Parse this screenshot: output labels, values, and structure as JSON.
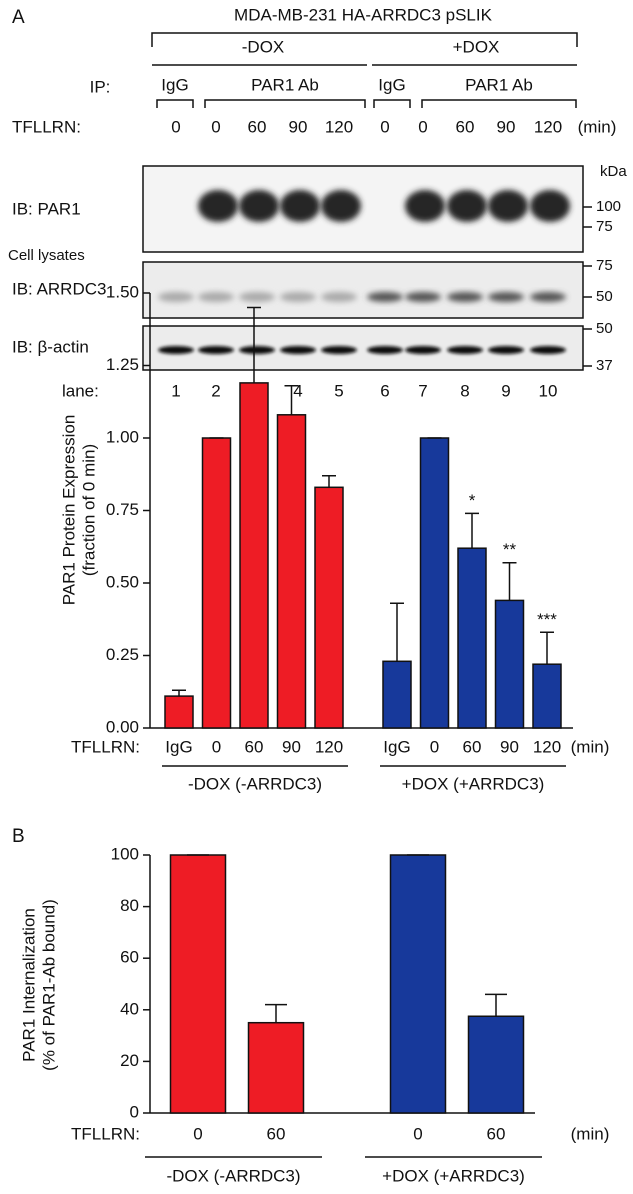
{
  "blot": {
    "panel_label": "A",
    "title": "MDA-MB-231 HA-ARRDC3 pSLIK",
    "groups": [
      "-DOX",
      "+DOX"
    ],
    "ip_label": "IP:",
    "ip_groups": [
      "IgG",
      "PAR1 Ab",
      "IgG",
      "PAR1 Ab"
    ],
    "treatment_label": "TFLLRN:",
    "times": [
      "0",
      "0",
      "60",
      "90",
      "120",
      "0",
      "0",
      "60",
      "90",
      "120"
    ],
    "time_unit": "(min)",
    "kda_label": "kDa",
    "rows": [
      {
        "label": "IB: PAR1",
        "markers": [
          "100",
          "75"
        ]
      },
      {
        "label": "IB: ARRDC3",
        "markers": [
          "75",
          "50"
        ]
      },
      {
        "label": "IB: β-actin",
        "markers": [
          "50",
          "37"
        ]
      }
    ],
    "lysates_label": "Cell lysates",
    "lane_label": "lane:",
    "lanes": [
      "1",
      "2",
      "3",
      "4",
      "5",
      "6",
      "7",
      "8",
      "9",
      "10"
    ]
  },
  "chart_data": [
    {
      "type": "bar",
      "ylabel": [
        "PAR1 Protein Expression",
        "(fraction of 0 min)"
      ],
      "xlabel": "TFLLRN:",
      "x_unit": "(min)",
      "categories": [
        "IgG",
        "0",
        "60",
        "90",
        "120",
        "IgG",
        "0",
        "60",
        "90",
        "120"
      ],
      "values": [
        0.11,
        1.0,
        1.19,
        1.08,
        0.83,
        0.23,
        1.0,
        0.62,
        0.44,
        0.22
      ],
      "errors": [
        0.02,
        0,
        0.26,
        0.1,
        0.04,
        0.2,
        0,
        0.12,
        0.13,
        0.11
      ],
      "significance": [
        null,
        null,
        null,
        null,
        null,
        null,
        null,
        "*",
        "**",
        "***"
      ],
      "colors": [
        "#ee1c25",
        "#ee1c25",
        "#ee1c25",
        "#ee1c25",
        "#ee1c25",
        "#17399b",
        "#17399b",
        "#17399b",
        "#17399b",
        "#17399b"
      ],
      "groups": [
        "-DOX (-ARRDC3)",
        "+DOX (+ARRDC3)"
      ],
      "ylim": [
        0,
        1.5
      ],
      "yticks": [
        {
          "value": 0,
          "label": "0.00"
        },
        {
          "value": 0.25,
          "label": "0.25"
        },
        {
          "value": 0.5,
          "label": "0.50"
        },
        {
          "value": 0.75,
          "label": "0.75"
        },
        {
          "value": 1.0,
          "label": "1.00"
        },
        {
          "value": 1.25,
          "label": "1.25"
        },
        {
          "value": 1.5,
          "label": "1.50"
        }
      ]
    },
    {
      "type": "bar",
      "panel_label": "B",
      "ylabel": [
        "PAR1 Internalization",
        "(% of PAR1-Ab bound)"
      ],
      "xlabel": "TFLLRN:",
      "x_unit": "(min)",
      "categories": [
        "0",
        "60",
        "0",
        "60"
      ],
      "values": [
        100,
        35,
        100,
        37.5
      ],
      "errors": [
        0,
        7,
        0,
        8.5
      ],
      "colors": [
        "#ee1c25",
        "#ee1c25",
        "#17399b",
        "#17399b"
      ],
      "groups": [
        "-DOX (-ARRDC3)",
        "+DOX (+ARRDC3)"
      ],
      "ylim": [
        0,
        100
      ],
      "yticks": [
        0,
        20,
        40,
        60,
        80,
        100
      ]
    }
  ]
}
